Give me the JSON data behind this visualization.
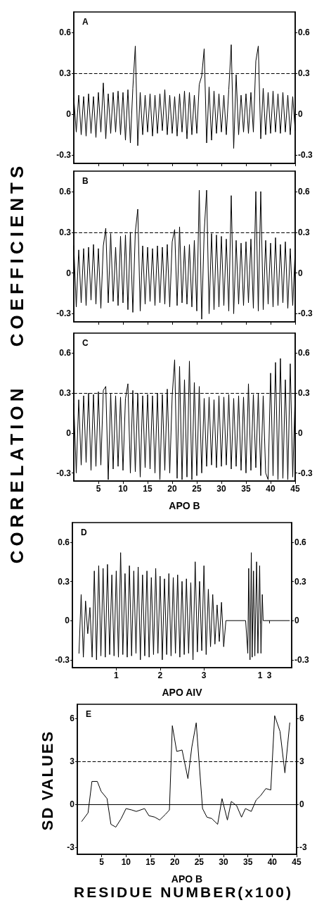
{
  "chart_data": [
    {
      "type": "line",
      "title": "A",
      "ylabel": "CORRELATION COEFFICIENTS",
      "marker": "none",
      "color": "#000000",
      "tick_labels": "y",
      "xlim": [
        0,
        45
      ],
      "xticks": [
        5,
        10,
        15,
        20,
        25,
        30,
        35,
        40,
        45
      ],
      "ylim": [
        -0.36,
        0.75
      ],
      "yticks": [
        -0.3,
        0,
        0.3,
        0.6
      ],
      "y2lim": [
        -0.36,
        0.75
      ],
      "y2ticks": [
        -0.3,
        0,
        0.3,
        0.6
      ],
      "ref_lines": [
        {
          "axis": "y",
          "value": 0.3,
          "line_style": "dashed"
        }
      ],
      "x": [
        0,
        0.5,
        1,
        1.5,
        2,
        2.5,
        3,
        3.5,
        4,
        4.5,
        5,
        5.5,
        6,
        6.5,
        7,
        7.5,
        8,
        8.5,
        9,
        9.5,
        10,
        10.5,
        11,
        11.5,
        12,
        12.5,
        13,
        13.5,
        14,
        14.5,
        15,
        15.5,
        16,
        16.5,
        17,
        17.5,
        18,
        18.5,
        19,
        19.5,
        20,
        20.5,
        21,
        21.5,
        22,
        22.5,
        23,
        23.5,
        24,
        24.5,
        25,
        25.5,
        26,
        26.5,
        27,
        27.5,
        28,
        28.5,
        29,
        29.5,
        30,
        30.5,
        31,
        31.5,
        32,
        32.5,
        33,
        33.5,
        34,
        34.5,
        35,
        35.5,
        36,
        36.5,
        37,
        37.5,
        38,
        38.5,
        39,
        39.5,
        40,
        40.5,
        41,
        41.5,
        42,
        42.5,
        43,
        43.5,
        44,
        44.5,
        45
      ],
      "values": [
        0.12,
        -0.13,
        0.14,
        -0.15,
        0.13,
        -0.16,
        0.15,
        -0.14,
        0.13,
        -0.17,
        0.16,
        -0.13,
        0.23,
        -0.18,
        0.15,
        -0.14,
        0.16,
        -0.13,
        0.17,
        -0.15,
        0.16,
        -0.19,
        0.18,
        -0.21,
        0.19,
        0.5,
        -0.23,
        0.16,
        -0.15,
        0.14,
        -0.13,
        0.15,
        -0.16,
        0.14,
        -0.14,
        0.15,
        -0.12,
        0.18,
        -0.15,
        0.14,
        -0.14,
        0.13,
        -0.16,
        0.15,
        -0.13,
        0.17,
        -0.18,
        0.16,
        -0.15,
        0.14,
        -0.14,
        0.22,
        0.28,
        0.48,
        -0.21,
        0.2,
        -0.19,
        0.17,
        -0.14,
        0.15,
        -0.13,
        0.14,
        -0.15,
        0.18,
        0.51,
        -0.25,
        0.29,
        -0.15,
        0.14,
        -0.13,
        0.15,
        -0.14,
        0.16,
        -0.13,
        0.39,
        0.5,
        -0.18,
        0.19,
        -0.15,
        0.16,
        -0.14,
        0.17,
        -0.13,
        0.15,
        -0.14,
        0.16,
        -0.13,
        0.14,
        -0.15,
        0.13,
        -0.12
      ]
    },
    {
      "type": "line",
      "title": "B",
      "marker": "none",
      "color": "#000000",
      "tick_labels": "y",
      "xlim": [
        0,
        45
      ],
      "xticks": [
        5,
        10,
        15,
        20,
        25,
        30,
        35,
        40,
        45
      ],
      "ylim": [
        -0.36,
        0.75
      ],
      "yticks": [
        -0.3,
        0,
        0.3,
        0.6
      ],
      "y2lim": [
        -0.36,
        0.75
      ],
      "y2ticks": [
        -0.3,
        0,
        0.3,
        0.6
      ],
      "ref_lines": [
        {
          "axis": "y",
          "value": 0.3,
          "line_style": "dashed"
        }
      ],
      "x": [
        0,
        0.5,
        1,
        1.5,
        2,
        2.5,
        3,
        3.5,
        4,
        4.5,
        5,
        5.5,
        6,
        6.5,
        7,
        7.5,
        8,
        8.5,
        9,
        9.5,
        10,
        10.5,
        11,
        11.5,
        12,
        12.5,
        13,
        13.5,
        14,
        14.5,
        15,
        15.5,
        16,
        16.5,
        17,
        17.5,
        18,
        18.5,
        19,
        19.5,
        20,
        20.5,
        21,
        21.5,
        22,
        22.5,
        23,
        23.5,
        24,
        24.5,
        25,
        25.5,
        26,
        26.5,
        27,
        27.5,
        28,
        28.5,
        29,
        29.5,
        30,
        30.5,
        31,
        31.5,
        32,
        32.5,
        33,
        33.5,
        34,
        34.5,
        35,
        35.5,
        36,
        36.5,
        37,
        37.5,
        38,
        38.5,
        39,
        39.5,
        40,
        40.5,
        41,
        41.5,
        42,
        42.5,
        43,
        43.5,
        44,
        44.5,
        45
      ],
      "values": [
        0.2,
        -0.25,
        0.17,
        -0.22,
        0.18,
        -0.24,
        0.19,
        -0.2,
        0.21,
        -0.23,
        0.18,
        -0.26,
        0.2,
        0.33,
        -0.22,
        0.29,
        -0.21,
        0.19,
        -0.24,
        0.27,
        -0.22,
        0.28,
        -0.27,
        0.3,
        -0.29,
        0.3,
        0.47,
        -0.28,
        0.2,
        -0.23,
        0.19,
        -0.21,
        0.18,
        -0.24,
        0.2,
        -0.22,
        0.19,
        -0.23,
        0.21,
        -0.25,
        0.23,
        0.32,
        -0.24,
        0.34,
        -0.22,
        0.2,
        -0.23,
        0.21,
        -0.25,
        0.24,
        -0.28,
        0.61,
        -0.34,
        0.3,
        0.61,
        -0.3,
        0.29,
        -0.27,
        0.28,
        -0.25,
        0.27,
        -0.24,
        0.25,
        -0.28,
        0.57,
        -0.3,
        0.24,
        -0.23,
        0.22,
        -0.24,
        0.23,
        -0.22,
        0.25,
        -0.26,
        0.6,
        -0.28,
        0.6,
        -0.27,
        0.24,
        -0.23,
        0.22,
        -0.25,
        0.26,
        -0.24,
        0.21,
        -0.22,
        0.23,
        -0.26,
        0.18,
        -0.24,
        0.17
      ]
    },
    {
      "type": "line",
      "title": "C",
      "xlabel": "APO B",
      "marker": "none",
      "color": "#000000",
      "xlim": [
        0,
        45
      ],
      "xticks": [
        5,
        10,
        15,
        20,
        25,
        30,
        35,
        40,
        45
      ],
      "ylim": [
        -0.36,
        0.75
      ],
      "yticks": [
        -0.3,
        0,
        0.3,
        0.6
      ],
      "y2lim": [
        -0.36,
        0.75
      ],
      "y2ticks": [
        -0.3,
        0,
        0.3,
        0.6
      ],
      "ref_lines": [
        {
          "axis": "y",
          "value": 0.3,
          "line_style": "dashed"
        }
      ],
      "x": [
        0,
        0.5,
        1,
        1.5,
        2,
        2.5,
        3,
        3.5,
        4,
        4.5,
        5,
        5.5,
        6,
        6.5,
        7,
        7.5,
        8,
        8.5,
        9,
        9.5,
        10,
        10.5,
        11,
        11.5,
        12,
        12.5,
        13,
        13.5,
        14,
        14.5,
        15,
        15.5,
        16,
        16.5,
        17,
        17.5,
        18,
        18.5,
        19,
        19.5,
        20,
        20.5,
        21,
        21.5,
        22,
        22.5,
        23,
        23.5,
        24,
        24.5,
        25,
        25.5,
        26,
        26.5,
        27,
        27.5,
        28,
        28.5,
        29,
        29.5,
        30,
        30.5,
        31,
        31.5,
        32,
        32.5,
        33,
        33.5,
        34,
        34.5,
        35,
        35.5,
        36,
        36.5,
        37,
        37.5,
        38,
        38.5,
        39,
        39.5,
        40,
        40.5,
        41,
        41.5,
        42,
        42.5,
        43,
        43.5,
        44,
        44.5,
        45
      ],
      "values": [
        0.22,
        -0.3,
        0.25,
        -0.24,
        0.28,
        -0.22,
        0.3,
        -0.28,
        0.29,
        -0.25,
        0.31,
        -0.24,
        0.32,
        0.35,
        -0.35,
        0.3,
        -0.27,
        0.28,
        -0.25,
        0.27,
        -0.28,
        0.26,
        0.37,
        -0.3,
        0.32,
        -0.29,
        0.3,
        -0.33,
        0.28,
        -0.26,
        0.29,
        -0.27,
        0.28,
        -0.3,
        0.3,
        -0.35,
        0.29,
        -0.28,
        0.33,
        -0.3,
        0.28,
        0.55,
        -0.34,
        0.5,
        -0.35,
        0.4,
        -0.33,
        0.54,
        -0.35,
        0.38,
        -0.32,
        0.35,
        -0.3,
        0.26,
        -0.25,
        0.27,
        -0.24,
        0.25,
        -0.26,
        0.28,
        -0.25,
        0.27,
        -0.24,
        0.29,
        -0.27,
        0.26,
        -0.25,
        0.28,
        -0.28,
        0.27,
        -0.3,
        0.37,
        -0.28,
        0.29,
        -0.26,
        0.3,
        -0.32,
        0.28,
        -0.3,
        -0.35,
        0.45,
        -0.32,
        0.53,
        -0.35,
        0.56,
        -0.34,
        0.4,
        -0.35,
        0.52,
        -0.33,
        0.3
      ]
    },
    {
      "type": "line",
      "title": "D",
      "xlabel": "APO AIV",
      "marker": "none",
      "color": "#000000",
      "xlim": [
        0,
        5
      ],
      "xticks": [
        1,
        2,
        3
      ],
      "x2lim": [
        -40.1,
        7.9
      ],
      "x2ticks": [
        1,
        3
      ],
      "ylim": [
        -0.36,
        0.75
      ],
      "yticks": [
        -0.3,
        0,
        0.3,
        0.6
      ],
      "y2lim": [
        -0.36,
        0.75
      ],
      "y2ticks": [
        -0.3,
        0,
        0.3,
        0.6
      ],
      "x": [
        0.15,
        0.2,
        0.25,
        0.3,
        0.35,
        0.4,
        0.45,
        0.5,
        0.55,
        0.6,
        0.65,
        0.7,
        0.75,
        0.8,
        0.85,
        0.9,
        0.95,
        1,
        1.05,
        1.1,
        1.15,
        1.2,
        1.25,
        1.3,
        1.35,
        1.4,
        1.45,
        1.5,
        1.55,
        1.6,
        1.65,
        1.7,
        1.75,
        1.8,
        1.85,
        1.9,
        1.95,
        2,
        2.05,
        2.1,
        2.15,
        2.2,
        2.25,
        2.3,
        2.35,
        2.4,
        2.45,
        2.5,
        2.55,
        2.6,
        2.65,
        2.7,
        2.75,
        2.8,
        2.85,
        2.9,
        2.95,
        3,
        3.05,
        3.1,
        3.15,
        3.2,
        3.25,
        3.3,
        3.35,
        3.4,
        3.45,
        3.5,
        3.95,
        4,
        4.02,
        4.05,
        4.08,
        4.1,
        4.13,
        4.16,
        4.2,
        4.23,
        4.27,
        4.3,
        4.33,
        4.35,
        4.95
      ],
      "values": [
        -0.25,
        0.2,
        -0.28,
        0.15,
        -0.1,
        0.1,
        -0.28,
        0.38,
        -0.3,
        0.42,
        -0.27,
        0.4,
        -0.28,
        0.43,
        -0.26,
        0.35,
        -0.27,
        0.38,
        -0.28,
        0.52,
        -0.26,
        0.36,
        -0.28,
        0.42,
        -0.27,
        0.38,
        -0.25,
        0.41,
        -0.3,
        0.35,
        -0.27,
        0.38,
        -0.28,
        0.33,
        -0.26,
        0.4,
        -0.25,
        0.34,
        -0.3,
        0.32,
        -0.26,
        0.36,
        -0.27,
        0.33,
        -0.25,
        0.35,
        -0.28,
        0.3,
        -0.26,
        0.32,
        -0.25,
        0.29,
        -0.3,
        0.45,
        -0.24,
        0.3,
        -0.23,
        0.42,
        -0.26,
        0.24,
        -0.2,
        0.2,
        -0.18,
        0.12,
        -0.16,
        0.14,
        -0.2,
        0,
        0,
        -0.25,
        0.4,
        -0.3,
        0.52,
        -0.28,
        0.38,
        -0.27,
        0.45,
        -0.25,
        0.42,
        -0.25,
        0.2,
        0,
        0
      ]
    },
    {
      "type": "line",
      "title": "E",
      "xlabel": "APO B",
      "ylabel": "SD VALUES",
      "annotations": [
        "RESIDUE NUMBER(x100)"
      ],
      "marker": "none",
      "color": "#000000",
      "xlim": [
        0,
        45
      ],
      "xticks": [
        5,
        10,
        15,
        20,
        25,
        30,
        35,
        40,
        45
      ],
      "ylim": [
        -3.5,
        7
      ],
      "yticks": [
        -3,
        0,
        3,
        6
      ],
      "y2lim": [
        -3.5,
        7
      ],
      "y2ticks": [
        -3,
        0,
        3,
        6
      ],
      "ref_lines": [
        {
          "axis": "y",
          "value": 3,
          "line_style": "dashed"
        },
        {
          "axis": "y",
          "value": 0,
          "line_style": "solid"
        }
      ],
      "x": [
        0.9,
        2.2,
        3.0,
        4.1,
        4.9,
        6.1,
        6.9,
        7.9,
        9.0,
        10.0,
        11.2,
        12.1,
        13.8,
        14.7,
        15.9,
        16.9,
        18.1,
        18.9,
        19.5,
        20.4,
        21.5,
        22.7,
        23.5,
        24.4,
        25.7,
        26.6,
        27.6,
        28.8,
        29.7,
        30.8,
        31.6,
        32.7,
        33.7,
        34.5,
        35.7,
        36.7,
        37.6,
        38.7,
        39.7,
        40.5,
        41.6,
        42.6,
        43.6
      ],
      "values": [
        -1.2,
        -0.6,
        1.6,
        1.6,
        0.9,
        0.4,
        -1.4,
        -1.6,
        -1.0,
        -0.3,
        -0.4,
        -0.5,
        -0.3,
        -0.8,
        -0.9,
        -1.1,
        -0.7,
        -0.4,
        5.5,
        3.7,
        3.8,
        1.8,
        4.0,
        5.7,
        -0.3,
        -0.9,
        -1.0,
        -1.4,
        0.4,
        -1.1,
        0.2,
        -0.1,
        -0.9,
        -0.3,
        -0.5,
        0.3,
        0.6,
        1.1,
        1.0,
        6.2,
        5.1,
        2.2,
        5.7
      ]
    }
  ]
}
